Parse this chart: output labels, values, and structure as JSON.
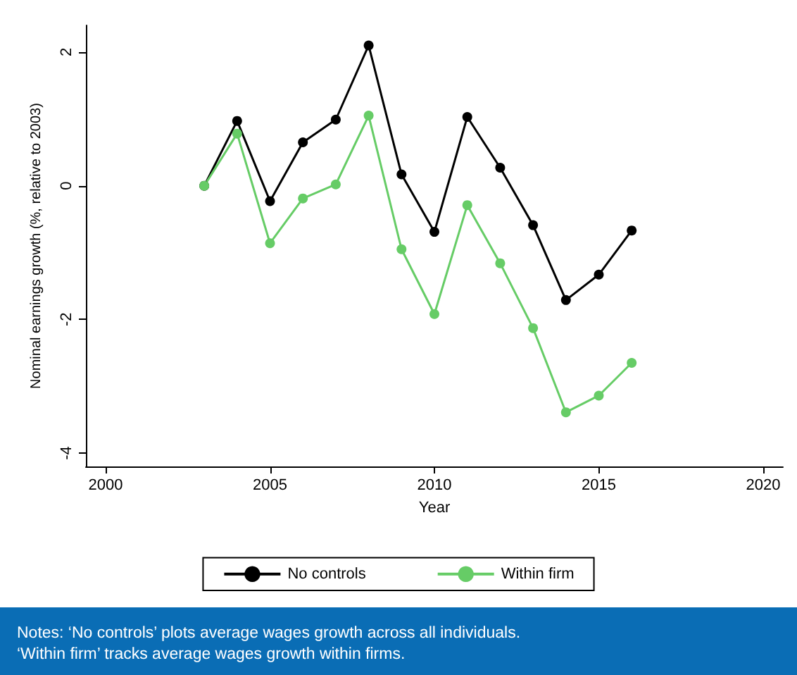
{
  "chart_data": {
    "type": "line",
    "xlabel": "Year",
    "ylabel": "Nominal earnings growth (%, relative to 2003)",
    "x": [
      2003,
      2004,
      2005,
      2006,
      2007,
      2008,
      2009,
      2010,
      2011,
      2012,
      2013,
      2014,
      2015,
      2016
    ],
    "series": [
      {
        "name": "No controls",
        "color": "#000000",
        "values": [
          0,
          0.97,
          -0.23,
          0.65,
          0.99,
          2.1,
          0.17,
          -0.69,
          1.03,
          0.27,
          -0.59,
          -1.71,
          -1.33,
          -0.67
        ]
      },
      {
        "name": "Within firm",
        "color": "#66cc66",
        "values": [
          0,
          0.78,
          -0.86,
          -0.19,
          0.02,
          1.05,
          -0.95,
          -1.92,
          -0.29,
          -1.16,
          -2.13,
          -3.39,
          -3.14,
          -2.65
        ]
      }
    ],
    "xlim": [
      1999.4,
      2020.6
    ],
    "xticks": [
      2000,
      2005,
      2010,
      2015,
      2020
    ],
    "ylim": [
      -4.2,
      2.4
    ],
    "yticks": [
      -4,
      -2,
      0,
      2
    ],
    "grid": false,
    "legend": "bottom",
    "marker": "circle",
    "line_style": "solid",
    "annotations": [
      "Notes: ‘No controls’ plots average wages growth across all individuals.\n‘Within firm’ tracks average wages growth within firms."
    ]
  }
}
